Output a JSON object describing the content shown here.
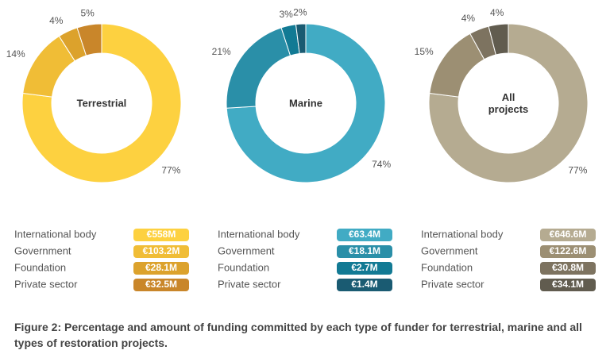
{
  "chart_data": [
    {
      "type": "pie",
      "title": "Terrestrial",
      "categories": [
        "International body",
        "Government",
        "Foundation",
        "Private sector"
      ],
      "values": [
        77,
        14,
        4,
        5
      ],
      "value_labels": [
        "77%",
        "14%",
        "4%",
        "5%"
      ],
      "amount_labels": [
        "€558M",
        "€103.2M",
        "€28.1M",
        "€32.5M"
      ],
      "colors": [
        "#fdd140",
        "#f0bd36",
        "#dca22c",
        "#c9862a"
      ]
    },
    {
      "type": "pie",
      "title": "Marine",
      "categories": [
        "International body",
        "Government",
        "Foundation",
        "Private sector"
      ],
      "values": [
        74,
        21,
        3,
        2
      ],
      "value_labels": [
        "74%",
        "21%",
        "3%",
        "2%"
      ],
      "amount_labels": [
        "€63.4M",
        "€18.1M",
        "€2.7M",
        "€1.4M"
      ],
      "colors": [
        "#41abc4",
        "#2a8fa8",
        "#127a94",
        "#1a5b72"
      ]
    },
    {
      "type": "pie",
      "title": "All projects",
      "categories": [
        "International body",
        "Government",
        "Foundation",
        "Private sector"
      ],
      "values": [
        77,
        15,
        4,
        4
      ],
      "value_labels": [
        "77%",
        "15%",
        "4%",
        "4%"
      ],
      "amount_labels": [
        "€646.6M",
        "€122.6M",
        "€30.8M",
        "€34.1M"
      ],
      "colors": [
        "#b5ab91",
        "#9c8f73",
        "#7d7360",
        "#615c4f"
      ]
    }
  ],
  "caption": "Figure 2: Percentage and amount of funding committed by each type of funder for terrestrial, marine and all types of restoration projects."
}
